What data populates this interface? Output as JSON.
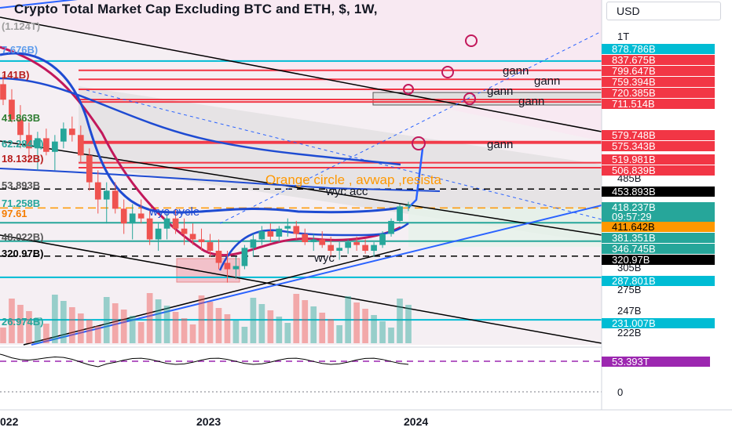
{
  "header": {
    "title": "Crypto Total Market Cap Excluding BTC and ETH, $, 1W,",
    "currency_button": "USD"
  },
  "price_scale": {
    "ticks": [
      "1T",
      "485B",
      "305B",
      "275B",
      "247B",
      "222B",
      "0"
    ],
    "labels": [
      {
        "text": "878.786B",
        "color": "#00bcd4"
      },
      {
        "text": "837.675B",
        "color": "#f23645"
      },
      {
        "text": "799.647B",
        "color": "#f23645"
      },
      {
        "text": "759.394B",
        "color": "#f23645"
      },
      {
        "text": "720.385B",
        "color": "#f23645"
      },
      {
        "text": "711.514B",
        "color": "#f23645"
      },
      {
        "text": "579.748B",
        "color": "#f23645"
      },
      {
        "text": "575.343B",
        "color": "#f23645"
      },
      {
        "text": "519.981B",
        "color": "#f23645"
      },
      {
        "text": "506.839B",
        "color": "#f23645"
      },
      {
        "text": "453.893B",
        "color": "#000000"
      },
      {
        "text": "418.237B",
        "color": "#26a69a"
      },
      {
        "text": "09:57:29",
        "color": "#26a69a"
      },
      {
        "text": "411.642B",
        "color": "#ff9800",
        "text_color": "#000000"
      },
      {
        "text": "381.351B",
        "color": "#26a69a"
      },
      {
        "text": "346.745B",
        "color": "#26a69a"
      },
      {
        "text": "320.97B",
        "color": "#000000"
      },
      {
        "text": "287.801B",
        "color": "#00bcd4"
      },
      {
        "text": "231.007B",
        "color": "#00bcd4"
      },
      {
        "text": "53.393T",
        "color": "#9c27b0"
      }
    ]
  },
  "time_scale": {
    "labels": [
      "022",
      "2023",
      "2024"
    ]
  },
  "left_edge_labels": [
    "(1.124T)",
    "7.676B)",
    "141B)",
    "41.863B",
    "62.284B)",
    "18.132B)",
    "53.893B",
    "71.258B",
    "97.61",
    "48.022B)",
    "320.97B)",
    "26.974B)"
  ],
  "annotations": {
    "orange_note": "Orange circle , avwap ,resista",
    "wyc_acc": "wyc acc",
    "wyc_cycle": "wyc cycle",
    "wyc": "wyc",
    "gann": [
      "gann",
      "gann",
      "gann",
      "gann",
      "gann"
    ]
  },
  "chart_data": {
    "type": "candlestick",
    "title": "Crypto Total Market Cap Excluding BTC and ETH, $, 1W,",
    "x_range": [
      "2022",
      "2024"
    ],
    "y_scale": "log",
    "last_price": "418.237B",
    "candles": [
      [
        780,
        820,
        700,
        720
      ],
      [
        720,
        760,
        640,
        650
      ],
      [
        650,
        700,
        560,
        600
      ],
      [
        600,
        640,
        520,
        560
      ],
      [
        560,
        610,
        500,
        590
      ],
      [
        590,
        620,
        540,
        550
      ],
      [
        550,
        600,
        500,
        580
      ],
      [
        580,
        640,
        560,
        620
      ],
      [
        620,
        660,
        580,
        600
      ],
      [
        600,
        630,
        520,
        540
      ],
      [
        540,
        560,
        450,
        470
      ],
      [
        470,
        500,
        400,
        430
      ],
      [
        430,
        470,
        380,
        450
      ],
      [
        450,
        470,
        400,
        410
      ],
      [
        410,
        430,
        360,
        380
      ],
      [
        380,
        420,
        350,
        400
      ],
      [
        400,
        430,
        380,
        390
      ],
      [
        390,
        410,
        340,
        350
      ],
      [
        350,
        380,
        330,
        370
      ],
      [
        370,
        400,
        350,
        390
      ],
      [
        390,
        410,
        360,
        370
      ],
      [
        370,
        390,
        340,
        360
      ],
      [
        360,
        380,
        340,
        350
      ],
      [
        350,
        370,
        330,
        345
      ],
      [
        345,
        360,
        320,
        330
      ],
      [
        330,
        350,
        300,
        310
      ],
      [
        310,
        330,
        280,
        300
      ],
      [
        300,
        320,
        285,
        305
      ],
      [
        305,
        340,
        300,
        335
      ],
      [
        335,
        360,
        320,
        350
      ],
      [
        350,
        375,
        340,
        365
      ],
      [
        365,
        380,
        345,
        355
      ],
      [
        355,
        375,
        345,
        370
      ],
      [
        370,
        390,
        355,
        375
      ],
      [
        375,
        385,
        350,
        360
      ],
      [
        360,
        370,
        340,
        345
      ],
      [
        345,
        360,
        330,
        350
      ],
      [
        350,
        365,
        335,
        340
      ],
      [
        340,
        355,
        320,
        330
      ],
      [
        330,
        345,
        315,
        335
      ],
      [
        335,
        350,
        325,
        345
      ],
      [
        345,
        355,
        330,
        340
      ],
      [
        340,
        350,
        325,
        330
      ],
      [
        330,
        345,
        320,
        340
      ],
      [
        340,
        365,
        335,
        360
      ],
      [
        360,
        390,
        355,
        385
      ],
      [
        385,
        420,
        380,
        415
      ],
      [
        415,
        425,
        405,
        418
      ]
    ],
    "horizontal_levels": [
      878.786,
      837.675,
      799.647,
      759.394,
      720.385,
      711.514,
      579.748,
      575.343,
      519.981,
      506.839,
      453.893,
      411.642,
      381.351,
      346.745,
      320.97,
      287.801,
      231.007
    ],
    "oscillator_value": "53.393T"
  }
}
